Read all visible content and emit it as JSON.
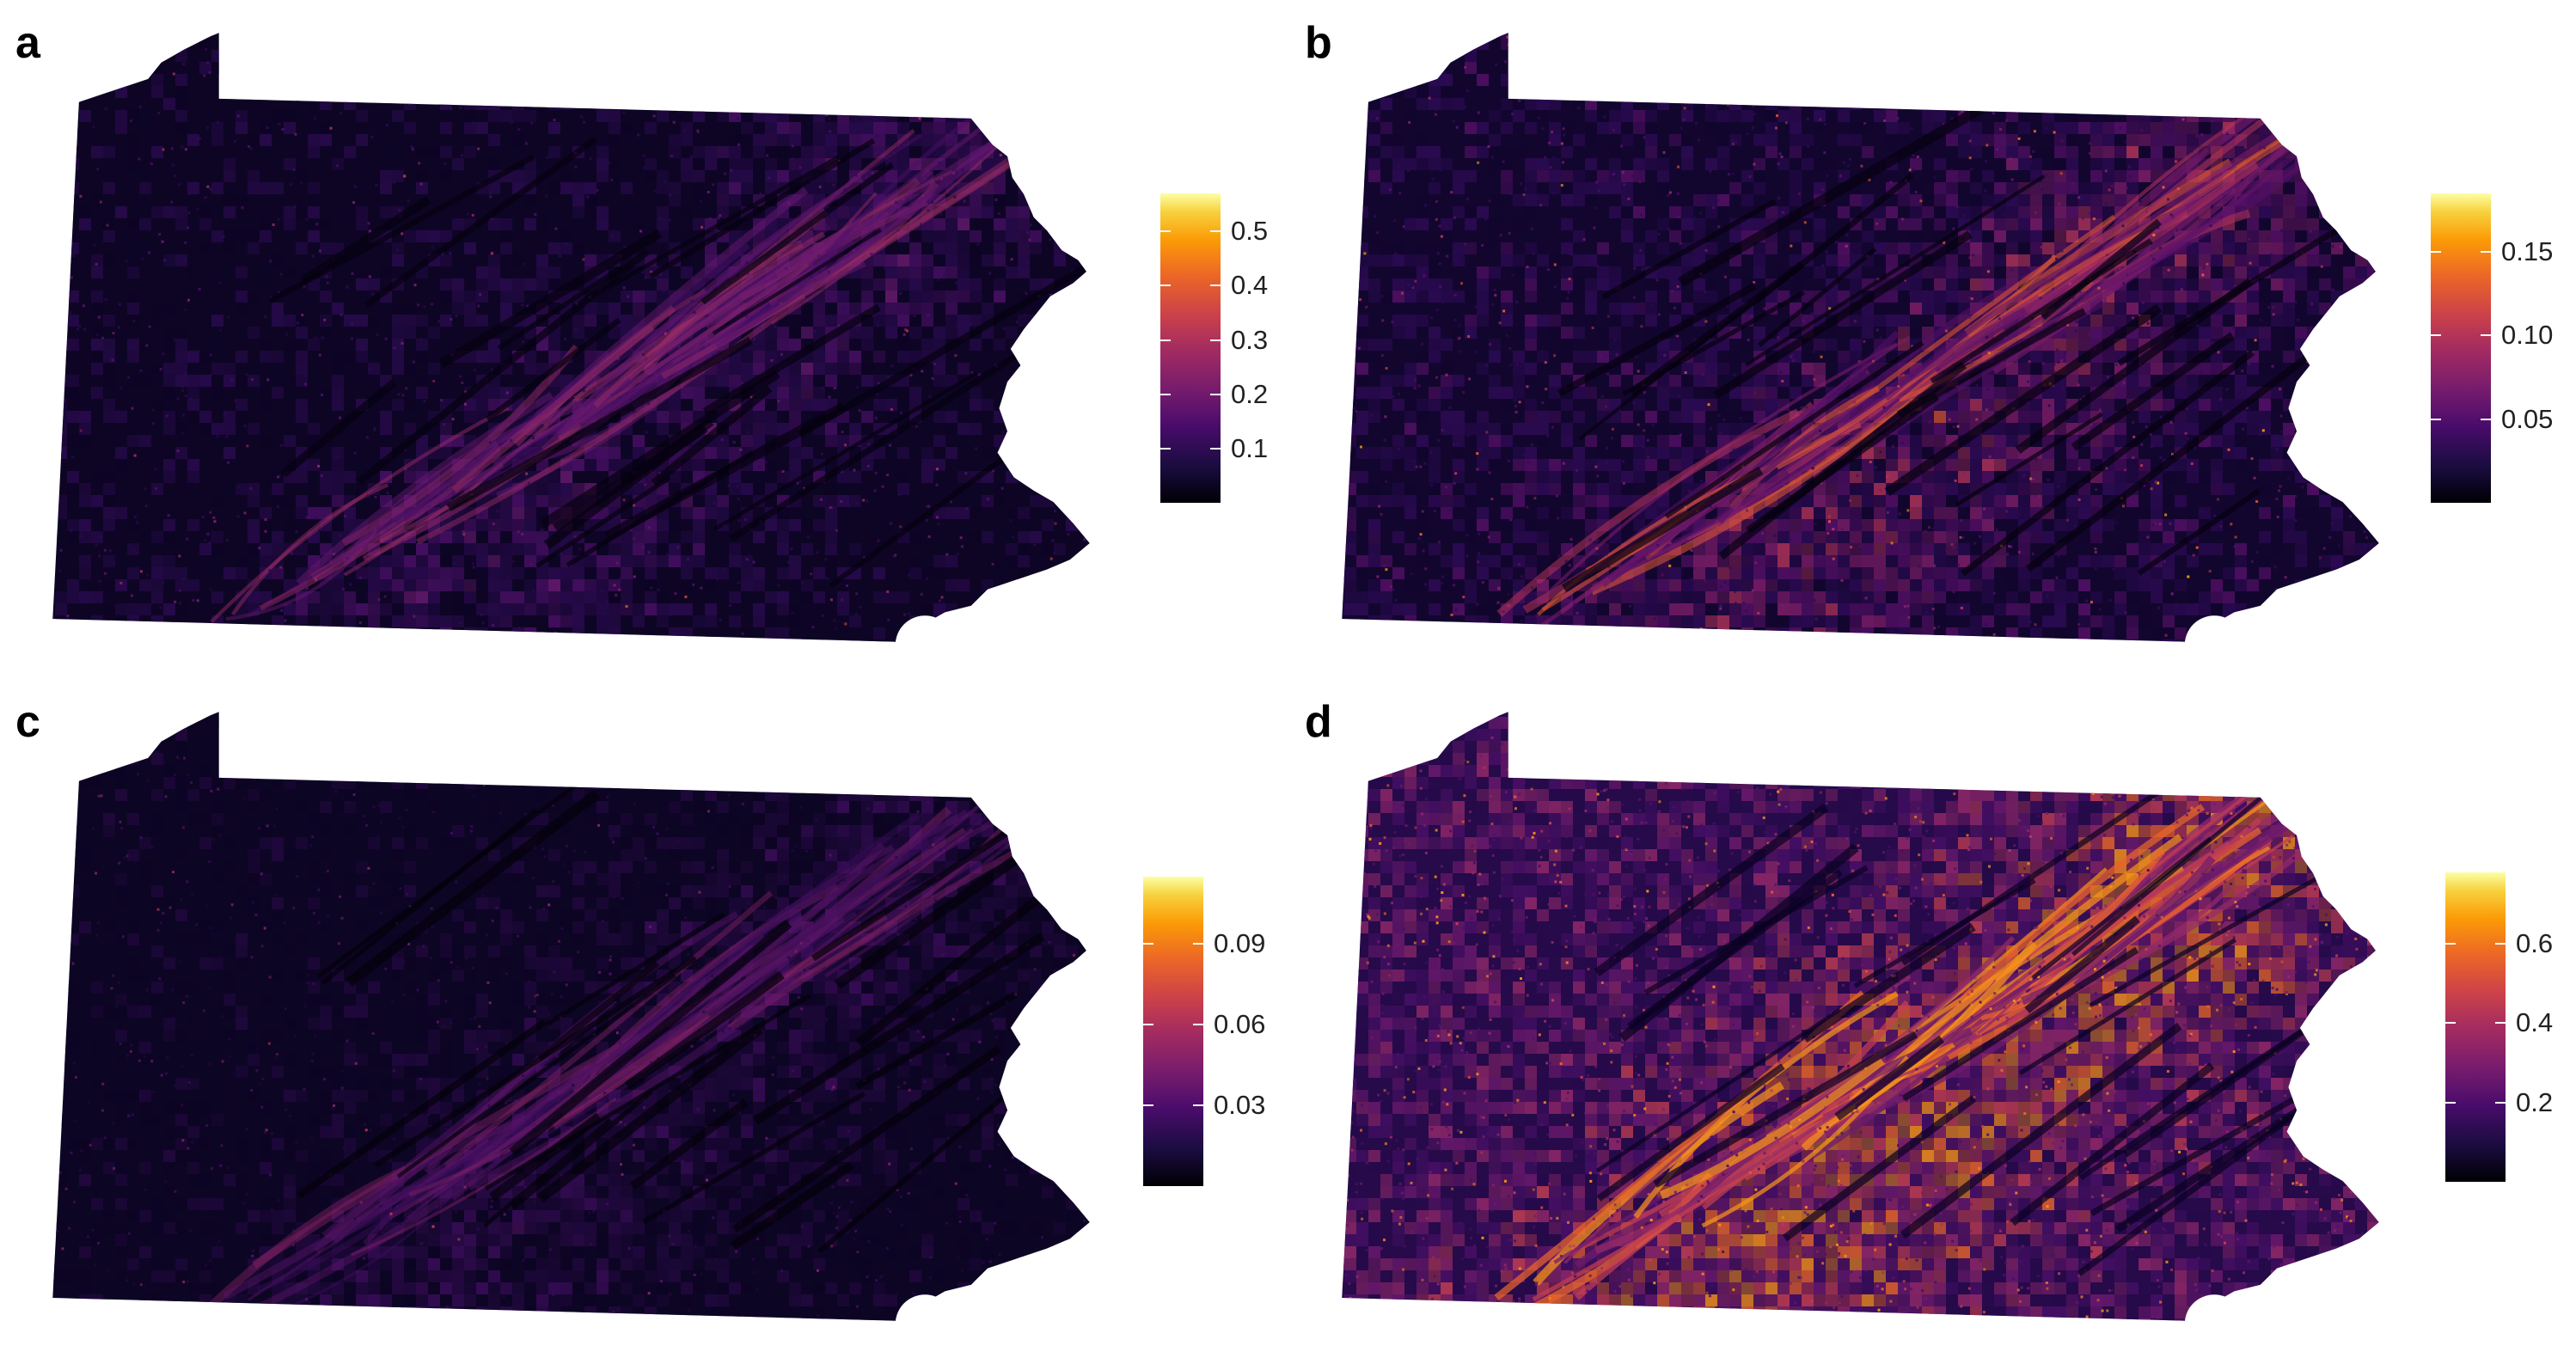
{
  "panels": [
    {
      "letter": "a",
      "palette": [
        "#05010f",
        "#0e0525",
        "#2a0b4f",
        "#4b1068",
        "#6a1b72",
        "#9c2e67",
        "#d14a3f",
        "#f48c1c"
      ],
      "intensity": 0.18,
      "legend": {
        "ticks": [
          {
            "value": 0.1,
            "label": "0.1"
          },
          {
            "value": 0.2,
            "label": "0.2"
          },
          {
            "value": 0.3,
            "label": "0.3"
          },
          {
            "value": 0.4,
            "label": "0.4"
          },
          {
            "value": 0.5,
            "label": "0.5"
          }
        ],
        "min": 0.0,
        "max": 0.57
      }
    },
    {
      "letter": "b",
      "palette": [
        "#05010f",
        "#12062e",
        "#2f0b57",
        "#561068",
        "#7f1e6b",
        "#b3345b",
        "#e45b34",
        "#fba30f"
      ],
      "intensity": 0.32,
      "legend": {
        "ticks": [
          {
            "value": 0.05,
            "label": "0.05"
          },
          {
            "value": 0.1,
            "label": "0.10"
          },
          {
            "value": 0.15,
            "label": "0.15"
          }
        ],
        "min": 0.0,
        "max": 0.185
      }
    },
    {
      "letter": "c",
      "palette": [
        "#04010c",
        "#0d0524",
        "#22093f",
        "#3c0d5c",
        "#5a1469",
        "#872366",
        "#c03e4e",
        "#f07c22"
      ],
      "intensity": 0.14,
      "legend": {
        "ticks": [
          {
            "value": 0.03,
            "label": "0.03"
          },
          {
            "value": 0.06,
            "label": "0.06"
          },
          {
            "value": 0.09,
            "label": "0.09"
          }
        ],
        "min": 0.0,
        "max": 0.115
      }
    },
    {
      "letter": "d",
      "palette": [
        "#0a0222",
        "#260a4a",
        "#4a1068",
        "#6d1a6e",
        "#94296a",
        "#c43f52",
        "#e9652b",
        "#f7931a"
      ],
      "intensity": 0.62,
      "legend": {
        "ticks": [
          {
            "value": 0.2,
            "label": "0.2"
          },
          {
            "value": 0.4,
            "label": "0.4"
          },
          {
            "value": 0.6,
            "label": "0.6"
          }
        ],
        "min": 0.0,
        "max": 0.78
      }
    }
  ]
}
